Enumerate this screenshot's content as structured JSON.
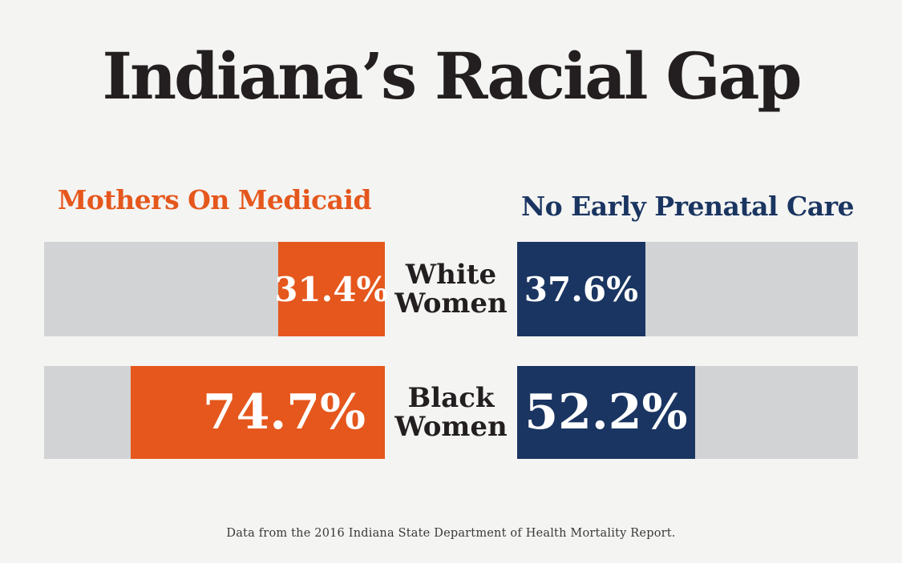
{
  "title": "Indiana’s Racial Gap",
  "colors": {
    "background": "#f4f4f2",
    "track": "#d1d3d4",
    "orange": "#e5571c",
    "navy": "#1a3561",
    "title_text": "#231f20",
    "footer_text": "#393939",
    "value_text": "#ffffff"
  },
  "left_header": "Mothers On Medicaid",
  "right_header": "No Early Prenatal Care",
  "rows": [
    {
      "label_line1": "White",
      "label_line2": "Women",
      "left_value": "31.4%",
      "right_value": "37.6%"
    },
    {
      "label_line1": "Black",
      "label_line2": "Women",
      "left_value": "74.7%",
      "right_value": "52.2%"
    }
  ],
  "footer": "Data from the 2016 Indiana State Department of Health Mortality Report.",
  "chart_data": {
    "type": "bar",
    "title": "Indiana’s Racial Gap",
    "categories": [
      "White Women",
      "Black Women"
    ],
    "series": [
      {
        "name": "Mothers On Medicaid",
        "color": "#e5571c",
        "values": [
          31.4,
          74.7
        ],
        "labels": [
          "31.4%",
          "74.7%"
        ],
        "bar_direction": "right-to-left"
      },
      {
        "name": "No Early Prenatal Care",
        "color": "#1a3561",
        "values": [
          37.6,
          52.2
        ],
        "labels": [
          "37.6%",
          "52.2%"
        ],
        "bar_direction": "left-to-right"
      }
    ],
    "xlim": [
      0,
      100
    ],
    "grid": false,
    "legend_position": "column-headers",
    "source_note": "Data from the 2016 Indiana State Department of Health Mortality Report."
  }
}
